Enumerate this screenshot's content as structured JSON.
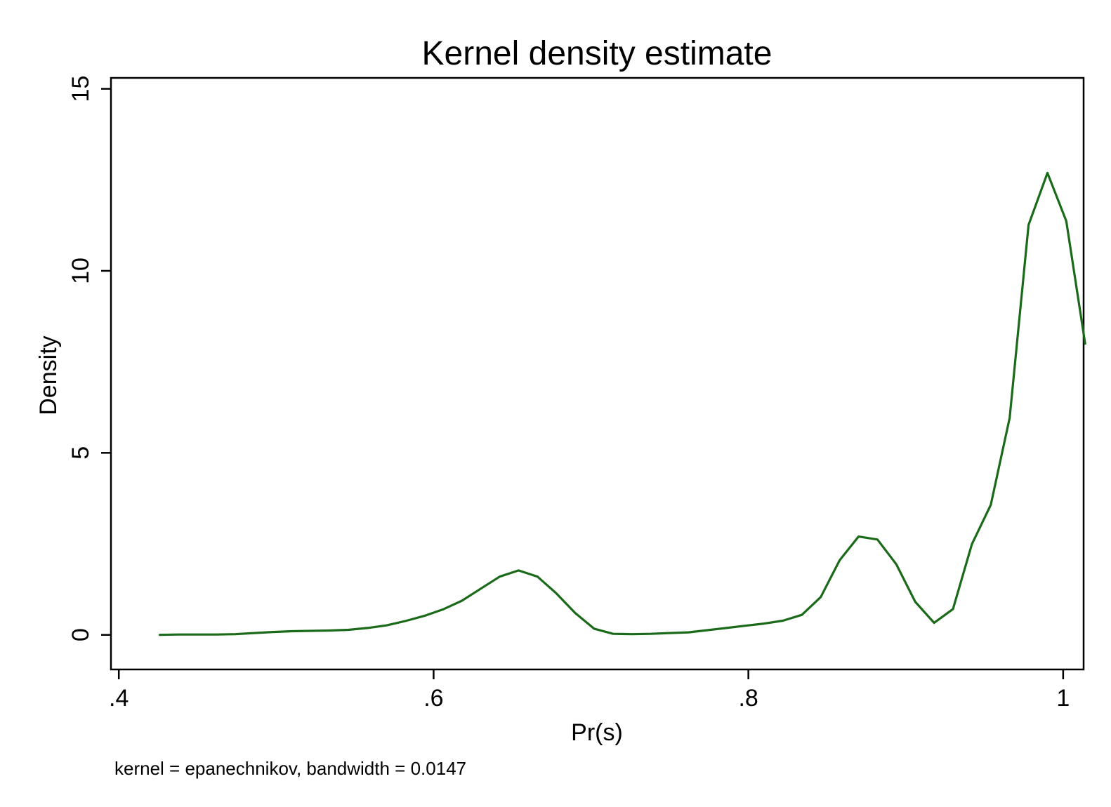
{
  "chart_data": {
    "type": "line",
    "title": "Kernel density estimate",
    "xlabel": "Pr(s)",
    "ylabel": "Density",
    "note": "kernel = epanechnikov, bandwidth = 0.0147",
    "xlim": [
      0.395,
      1.013
    ],
    "ylim": [
      -0.95,
      15.3
    ],
    "xticks": [
      0.4,
      0.6,
      0.8,
      1.0
    ],
    "xtick_labels": [
      ".4",
      ".6",
      ".8",
      "1"
    ],
    "yticks": [
      0,
      5,
      10,
      15
    ],
    "ytick_labels": [
      "0",
      "5",
      "10",
      "15"
    ],
    "grid": false,
    "legend": "none",
    "line_color": "#1a6a1a",
    "series": [
      {
        "x": [
          0.426,
          0.438,
          0.45,
          0.462,
          0.474,
          0.486,
          0.498,
          0.51,
          0.522,
          0.534,
          0.546,
          0.558,
          0.57,
          0.582,
          0.594,
          0.606,
          0.618,
          0.63,
          0.642,
          0.654,
          0.666,
          0.678,
          0.69,
          0.702,
          0.714,
          0.726,
          0.738,
          0.75,
          0.762,
          0.774,
          0.786,
          0.798,
          0.81,
          0.822,
          0.834,
          0.846,
          0.858,
          0.87,
          0.882,
          0.894,
          0.906,
          0.918,
          0.93,
          0.942,
          0.954,
          0.966,
          0.978,
          0.99,
          1.002,
          1.014
        ],
        "y": [
          0.0,
          0.01,
          0.01,
          0.01,
          0.02,
          0.05,
          0.08,
          0.1,
          0.11,
          0.12,
          0.14,
          0.19,
          0.26,
          0.38,
          0.52,
          0.7,
          0.94,
          1.27,
          1.6,
          1.77,
          1.6,
          1.14,
          0.6,
          0.17,
          0.03,
          0.02,
          0.03,
          0.05,
          0.07,
          0.13,
          0.19,
          0.25,
          0.31,
          0.39,
          0.55,
          1.04,
          2.05,
          2.7,
          2.62,
          1.94,
          0.91,
          0.33,
          0.71,
          2.49,
          3.57,
          5.96,
          11.26,
          12.69,
          11.37,
          8.0
        ]
      }
    ]
  }
}
